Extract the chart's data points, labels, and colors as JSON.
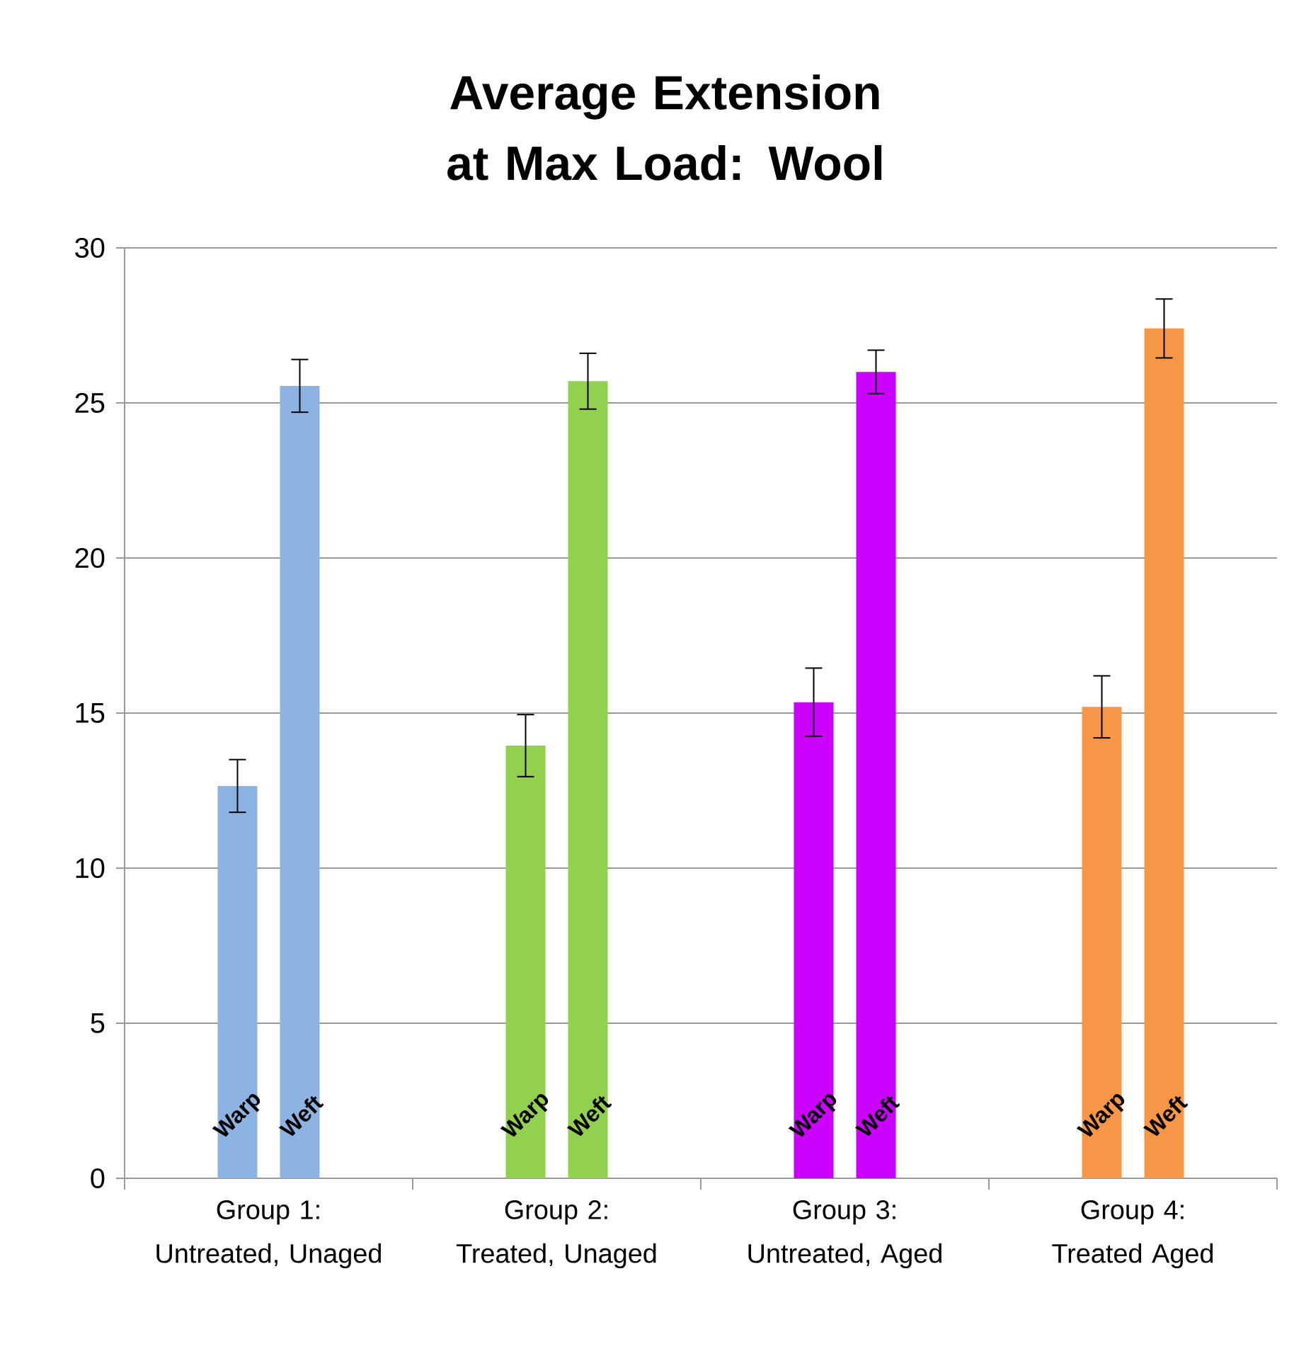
{
  "chart_data": {
    "type": "bar",
    "title": "Average Extension at Max Load: Wool",
    "categories": [
      "Group 1: Untreated, Unaged",
      "Group 2: Treated, Unaged",
      "Group 3: Untreated, Aged",
      "Group 4: Treated Aged"
    ],
    "series": [
      {
        "name": "Warp",
        "colors": [
          "#8db3e2",
          "#92d050",
          "#cc00ff",
          "#f79646"
        ],
        "values": [
          12.65,
          13.95,
          15.35,
          15.2
        ],
        "errors": [
          0.85,
          1.0,
          1.1,
          1.0
        ]
      },
      {
        "name": "Weft",
        "colors": [
          "#8db3e2",
          "#92d050",
          "#cc00ff",
          "#f79646"
        ],
        "values": [
          25.55,
          25.7,
          26.0,
          27.4
        ],
        "errors": [
          0.85,
          0.9,
          0.7,
          0.95
        ]
      }
    ],
    "ylim": [
      0,
      30
    ],
    "yticks": [
      0,
      5,
      10,
      15,
      20,
      25,
      30
    ],
    "grid": "y"
  }
}
